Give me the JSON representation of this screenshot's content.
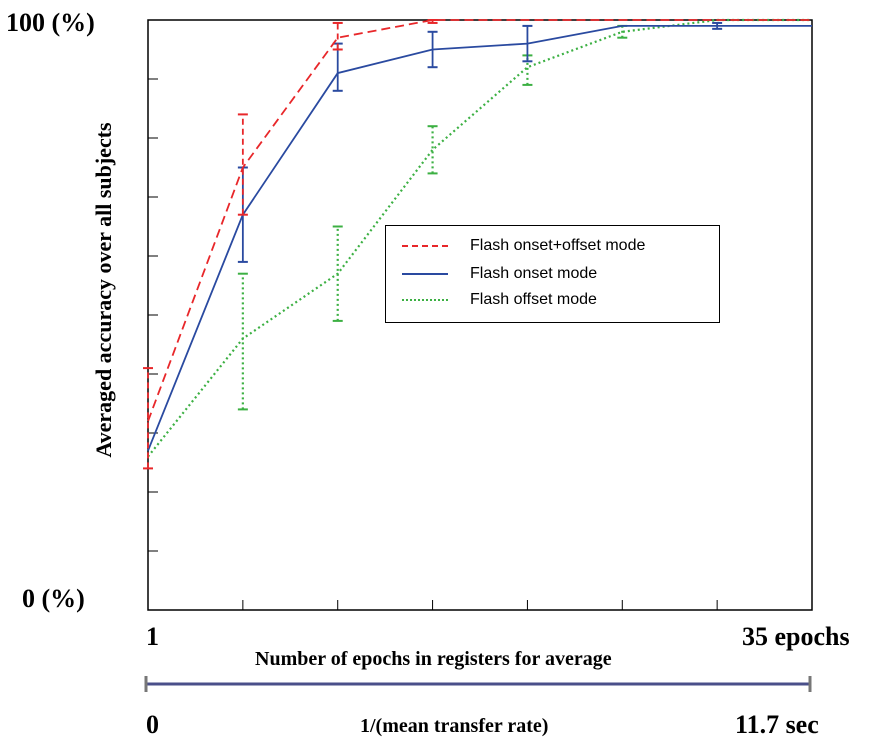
{
  "chart_data": {
    "type": "line",
    "ylabel": "Averaged accuracy over all subjects",
    "xlabel": "Number of epochs in registers for average",
    "y_tick_labels": {
      "top": "100 (%)",
      "bottom": "0 (%)"
    },
    "x_tick_labels": {
      "left": "1",
      "right": "35 epochs"
    },
    "secondary_axis": {
      "label": "1/(mean transfer rate)",
      "left": "0",
      "right": "11.7 sec"
    },
    "ylim": [
      0,
      100
    ],
    "x_positions": [
      1,
      2,
      3,
      4,
      5,
      6,
      7,
      8
    ],
    "series": [
      {
        "name": "Flash onset+offset mode",
        "color": "#e8272a",
        "dash": "dashed",
        "values": [
          32,
          75,
          97,
          100,
          100,
          100,
          100,
          100
        ],
        "errors": [
          [
            24,
            41
          ],
          [
            67,
            84
          ],
          [
            95,
            99.5
          ],
          [
            99.5,
            100
          ],
          null,
          null,
          null,
          null
        ]
      },
      {
        "name": "Flash onset mode",
        "color": "#2a4aa0",
        "dash": "solid",
        "values": [
          27,
          67,
          91,
          95,
          96,
          99,
          99,
          99
        ],
        "errors": [
          null,
          [
            59,
            75
          ],
          [
            88,
            96
          ],
          [
            92,
            98
          ],
          [
            93,
            99
          ],
          null,
          [
            98.5,
            99.5
          ],
          null
        ]
      },
      {
        "name": "Flash offset mode",
        "color": "#3cb043",
        "dash": "dotted",
        "values": [
          26,
          46,
          57,
          78,
          92,
          98,
          100,
          100
        ],
        "errors": [
          null,
          [
            34,
            57
          ],
          [
            49,
            65
          ],
          [
            74,
            82
          ],
          [
            89,
            94
          ],
          [
            97,
            99
          ],
          null,
          null
        ]
      }
    ]
  }
}
